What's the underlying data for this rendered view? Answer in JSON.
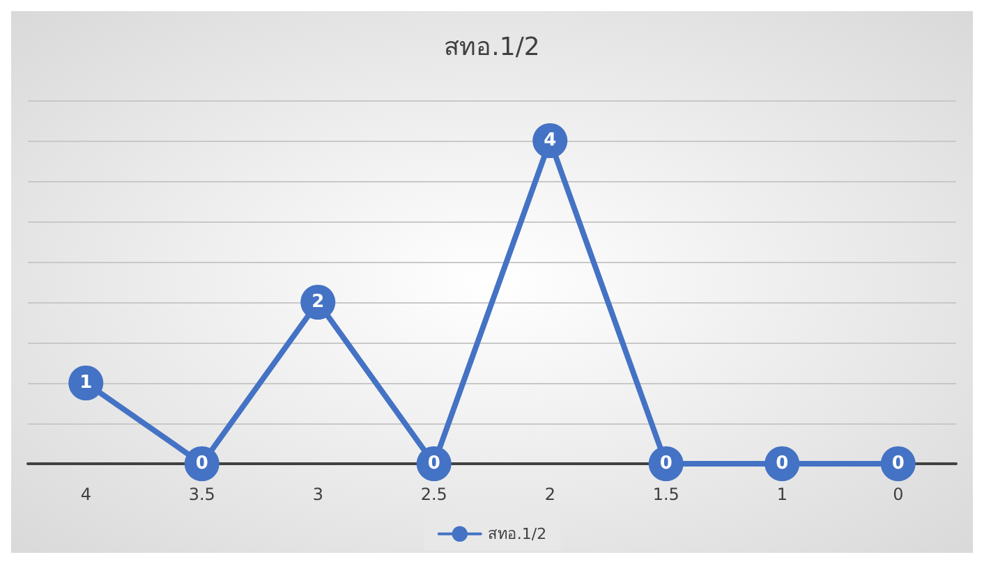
{
  "chart_data": {
    "type": "line",
    "title": "สทอ.1/2",
    "categories": [
      "4",
      "3.5",
      "3",
      "2.5",
      "2",
      "1.5",
      "1",
      "0"
    ],
    "series": [
      {
        "name": "สทอ.1/2",
        "color": "#4472c4",
        "values": [
          1,
          0,
          2,
          0,
          4,
          0,
          0,
          0
        ]
      }
    ],
    "ylim": [
      0,
      4.5
    ],
    "yticks": [
      {
        "value": 0,
        "label": null
      },
      {
        "value": 0.5,
        "label": null
      },
      {
        "value": 1,
        "label": null
      },
      {
        "value": 1.5,
        "label": null
      },
      {
        "value": 2,
        "label": null
      },
      {
        "value": 2.5,
        "label": null
      },
      {
        "value": 3,
        "label": null
      },
      {
        "value": 3.5,
        "label": null
      },
      {
        "value": 4,
        "label": null
      },
      {
        "value": 4.5,
        "label": null
      }
    ],
    "tick_labels": "x",
    "grid": "y",
    "legend": "bottom",
    "marker": "circle",
    "line_style": "solid",
    "data_labels": true
  }
}
